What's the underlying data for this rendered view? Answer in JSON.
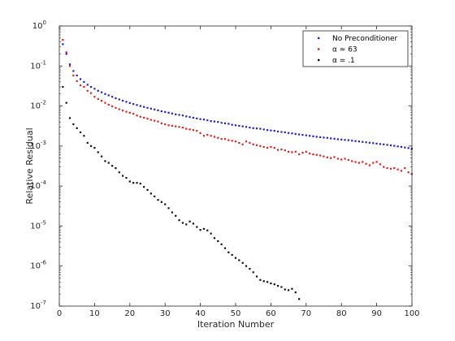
{
  "chart_data": {
    "type": "scatter",
    "title": "",
    "xlabel": "Iteration Number",
    "ylabel": "Relative Residual",
    "xlim": [
      0,
      100
    ],
    "ylim": [
      1e-07,
      1
    ],
    "yscale": "log",
    "grid": false,
    "legend_position": "top-right",
    "x_ticks": [
      "0",
      "10",
      "20",
      "30",
      "40",
      "50",
      "60",
      "70",
      "80",
      "90",
      "100"
    ],
    "y_ticks": [
      {
        "base": "10",
        "exp": "0"
      },
      {
        "base": "10",
        "exp": "-1"
      },
      {
        "base": "10",
        "exp": "-2"
      },
      {
        "base": "10",
        "exp": "-3"
      },
      {
        "base": "10",
        "exp": "-4"
      },
      {
        "base": "10",
        "exp": "-5"
      },
      {
        "base": "10",
        "exp": "-6"
      },
      {
        "base": "10",
        "exp": "-7"
      }
    ],
    "series": [
      {
        "name": "No Preconditioner",
        "color": "#1f1fcc",
        "points": [
          [
            1,
            0.35
          ],
          [
            2,
            0.2
          ],
          [
            3,
            0.11
          ],
          [
            4,
            0.075
          ],
          [
            5,
            0.058
          ],
          [
            6,
            0.047
          ],
          [
            7,
            0.04
          ],
          [
            8,
            0.034
          ],
          [
            9,
            0.03
          ],
          [
            10,
            0.027
          ],
          [
            11,
            0.024
          ],
          [
            12,
            0.022
          ],
          [
            13,
            0.02
          ],
          [
            14,
            0.0185
          ],
          [
            15,
            0.017
          ],
          [
            16,
            0.0157
          ],
          [
            17,
            0.0146
          ],
          [
            18,
            0.0136
          ],
          [
            19,
            0.0127
          ],
          [
            20,
            0.0119
          ],
          [
            21,
            0.0112
          ],
          [
            22,
            0.0106
          ],
          [
            23,
            0.01
          ],
          [
            24,
            0.0095
          ],
          [
            25,
            0.009
          ],
          [
            26,
            0.0086
          ],
          [
            27,
            0.0082
          ],
          [
            28,
            0.0078
          ],
          [
            29,
            0.0074
          ],
          [
            30,
            0.0071
          ],
          [
            31,
            0.0068
          ],
          [
            32,
            0.0065
          ],
          [
            33,
            0.0062
          ],
          [
            34,
            0.006
          ],
          [
            35,
            0.0058
          ],
          [
            36,
            0.0055
          ],
          [
            37,
            0.0053
          ],
          [
            38,
            0.0051
          ],
          [
            39,
            0.0049
          ],
          [
            40,
            0.0047
          ],
          [
            41,
            0.0046
          ],
          [
            42,
            0.0044
          ],
          [
            43,
            0.0042
          ],
          [
            44,
            0.0041
          ],
          [
            45,
            0.004
          ],
          [
            46,
            0.0038
          ],
          [
            47,
            0.0037
          ],
          [
            48,
            0.0036
          ],
          [
            49,
            0.0034
          ],
          [
            50,
            0.0033
          ],
          [
            51,
            0.0032
          ],
          [
            52,
            0.0031
          ],
          [
            53,
            0.003
          ],
          [
            54,
            0.0029
          ],
          [
            55,
            0.0028
          ],
          [
            56,
            0.00275
          ],
          [
            57,
            0.0027
          ],
          [
            58,
            0.0026
          ],
          [
            59,
            0.0025
          ],
          [
            60,
            0.00245
          ],
          [
            61,
            0.0024
          ],
          [
            62,
            0.0023
          ],
          [
            63,
            0.00225
          ],
          [
            64,
            0.0022
          ],
          [
            65,
            0.00212
          ],
          [
            66,
            0.00207
          ],
          [
            67,
            0.002
          ],
          [
            68,
            0.00195
          ],
          [
            69,
            0.0019
          ],
          [
            70,
            0.00185
          ],
          [
            71,
            0.0018
          ],
          [
            72,
            0.00175
          ],
          [
            73,
            0.0017
          ],
          [
            74,
            0.00167
          ],
          [
            75,
            0.00163
          ],
          [
            76,
            0.0016
          ],
          [
            77,
            0.00155
          ],
          [
            78,
            0.00152
          ],
          [
            79,
            0.00148
          ],
          [
            80,
            0.00145
          ],
          [
            81,
            0.00142
          ],
          [
            82,
            0.0014
          ],
          [
            83,
            0.00136
          ],
          [
            84,
            0.00133
          ],
          [
            85,
            0.0013
          ],
          [
            86,
            0.00127
          ],
          [
            87,
            0.00124
          ],
          [
            88,
            0.00121
          ],
          [
            89,
            0.00118
          ],
          [
            90,
            0.00115
          ],
          [
            91,
            0.00112
          ],
          [
            92,
            0.0011
          ],
          [
            93,
            0.00107
          ],
          [
            94,
            0.00104
          ],
          [
            95,
            0.00101
          ],
          [
            96,
            0.00098
          ],
          [
            97,
            0.00095
          ],
          [
            98,
            0.00092
          ],
          [
            99,
            0.00089
          ],
          [
            100,
            0.00086
          ]
        ]
      },
      {
        "name": "α ≈ 63",
        "color": "#e01f1f",
        "points": [
          [
            1,
            0.45
          ],
          [
            2,
            0.22
          ],
          [
            3,
            0.1
          ],
          [
            4,
            0.058
          ],
          [
            5,
            0.042
          ],
          [
            6,
            0.033
          ],
          [
            7,
            0.03
          ],
          [
            8,
            0.024
          ],
          [
            9,
            0.021
          ],
          [
            10,
            0.017
          ],
          [
            11,
            0.015
          ],
          [
            12,
            0.0135
          ],
          [
            13,
            0.012
          ],
          [
            14,
            0.0108
          ],
          [
            15,
            0.0098
          ],
          [
            16,
            0.009
          ],
          [
            17,
            0.0083
          ],
          [
            18,
            0.0077
          ],
          [
            19,
            0.0072
          ],
          [
            20,
            0.0068
          ],
          [
            21,
            0.0064
          ],
          [
            22,
            0.0058
          ],
          [
            23,
            0.0054
          ],
          [
            24,
            0.0051
          ],
          [
            25,
            0.0048
          ],
          [
            26,
            0.0045
          ],
          [
            27,
            0.0043
          ],
          [
            28,
            0.0041
          ],
          [
            29,
            0.0037
          ],
          [
            30,
            0.0035
          ],
          [
            31,
            0.0033
          ],
          [
            32,
            0.0032
          ],
          [
            33,
            0.0031
          ],
          [
            34,
            0.003
          ],
          [
            35,
            0.0029
          ],
          [
            36,
            0.0027
          ],
          [
            37,
            0.0026
          ],
          [
            38,
            0.0025
          ],
          [
            39,
            0.0024
          ],
          [
            40,
            0.0021
          ],
          [
            41,
            0.0018
          ],
          [
            42,
            0.0019
          ],
          [
            43,
            0.0018
          ],
          [
            44,
            0.0017
          ],
          [
            45,
            0.0016
          ],
          [
            46,
            0.0015
          ],
          [
            47,
            0.0015
          ],
          [
            48,
            0.0014
          ],
          [
            49,
            0.00135
          ],
          [
            50,
            0.0013
          ],
          [
            51,
            0.0012
          ],
          [
            52,
            0.0011
          ],
          [
            53,
            0.0013
          ],
          [
            54,
            0.0012
          ],
          [
            55,
            0.0011
          ],
          [
            56,
            0.00105
          ],
          [
            57,
            0.001
          ],
          [
            58,
            0.00095
          ],
          [
            59,
            0.0009
          ],
          [
            60,
            0.00095
          ],
          [
            61,
            0.0009
          ],
          [
            62,
            0.0008
          ],
          [
            63,
            0.00082
          ],
          [
            64,
            0.00078
          ],
          [
            65,
            0.00072
          ],
          [
            66,
            0.0007
          ],
          [
            67,
            0.00072
          ],
          [
            68,
            0.00062
          ],
          [
            69,
            0.00068
          ],
          [
            70,
            0.00072
          ],
          [
            71,
            0.00065
          ],
          [
            72,
            0.00062
          ],
          [
            73,
            0.0006
          ],
          [
            74,
            0.00058
          ],
          [
            75,
            0.00055
          ],
          [
            76,
            0.00052
          ],
          [
            77,
            0.0005
          ],
          [
            78,
            0.00053
          ],
          [
            79,
            0.00048
          ],
          [
            80,
            0.00046
          ],
          [
            81,
            0.00048
          ],
          [
            82,
            0.00045
          ],
          [
            83,
            0.00042
          ],
          [
            84,
            0.0004
          ],
          [
            85,
            0.00038
          ],
          [
            86,
            0.0004
          ],
          [
            87,
            0.00036
          ],
          [
            88,
            0.00033
          ],
          [
            89,
            0.00038
          ],
          [
            90,
            0.0004
          ],
          [
            91,
            0.00035
          ],
          [
            92,
            0.0003
          ],
          [
            93,
            0.00028
          ],
          [
            94,
            0.00027
          ],
          [
            95,
            0.00028
          ],
          [
            96,
            0.00026
          ],
          [
            97,
            0.00024
          ],
          [
            98,
            0.00028
          ],
          [
            99,
            0.00022
          ],
          [
            100,
            0.0002
          ]
        ]
      },
      {
        "name": "α = .1",
        "color": "#111111",
        "points": [
          [
            1,
            0.03
          ],
          [
            2,
            0.012
          ],
          [
            3,
            0.005
          ],
          [
            4,
            0.0035
          ],
          [
            5,
            0.0028
          ],
          [
            6,
            0.0022
          ],
          [
            7,
            0.0018
          ],
          [
            8,
            0.0012
          ],
          [
            9,
            0.001
          ],
          [
            10,
            0.0009
          ],
          [
            11,
            0.0007
          ],
          [
            12,
            0.00055
          ],
          [
            13,
            0.00042
          ],
          [
            14,
            0.00038
          ],
          [
            15,
            0.00032
          ],
          [
            16,
            0.00028
          ],
          [
            17,
            0.00022
          ],
          [
            18,
            0.00018
          ],
          [
            19,
            0.00016
          ],
          [
            20,
            0.00013
          ],
          [
            21,
            0.00012
          ],
          [
            22,
            0.00012
          ],
          [
            23,
            0.000115
          ],
          [
            24,
            9.5e-05
          ],
          [
            25,
            8e-05
          ],
          [
            26,
            6.5e-05
          ],
          [
            27,
            5.5e-05
          ],
          [
            28,
            4.5e-05
          ],
          [
            29,
            4e-05
          ],
          [
            30,
            3.5e-05
          ],
          [
            31,
            2.8e-05
          ],
          [
            32,
            2.2e-05
          ],
          [
            33,
            1.8e-05
          ],
          [
            34,
            1.4e-05
          ],
          [
            35,
            1.2e-05
          ],
          [
            36,
            1.1e-05
          ],
          [
            37,
            1.3e-05
          ],
          [
            38,
            1.15e-05
          ],
          [
            39,
            9.5e-06
          ],
          [
            40,
            8e-06
          ],
          [
            41,
            8.5e-06
          ],
          [
            42,
            7.8e-06
          ],
          [
            43,
            6.5e-06
          ],
          [
            44,
            5e-06
          ],
          [
            45,
            4.2e-06
          ],
          [
            46,
            3.5e-06
          ],
          [
            47,
            2.8e-06
          ],
          [
            48,
            2.2e-06
          ],
          [
            49,
            1.9e-06
          ],
          [
            50,
            1.6e-06
          ],
          [
            51,
            1.4e-06
          ],
          [
            52,
            1.2e-06
          ],
          [
            53,
            1e-06
          ],
          [
            54,
            8.5e-07
          ],
          [
            55,
            7e-07
          ],
          [
            56,
            5.5e-07
          ],
          [
            57,
            4.5e-07
          ],
          [
            58,
            4.2e-07
          ],
          [
            59,
            4e-07
          ],
          [
            60,
            3.7e-07
          ],
          [
            61,
            3.5e-07
          ],
          [
            62,
            3.2e-07
          ],
          [
            63,
            3e-07
          ],
          [
            64,
            2.6e-07
          ],
          [
            65,
            2.5e-07
          ],
          [
            66,
            2.7e-07
          ],
          [
            67,
            2.2e-07
          ],
          [
            68,
            1.5e-07
          ]
        ]
      }
    ]
  }
}
